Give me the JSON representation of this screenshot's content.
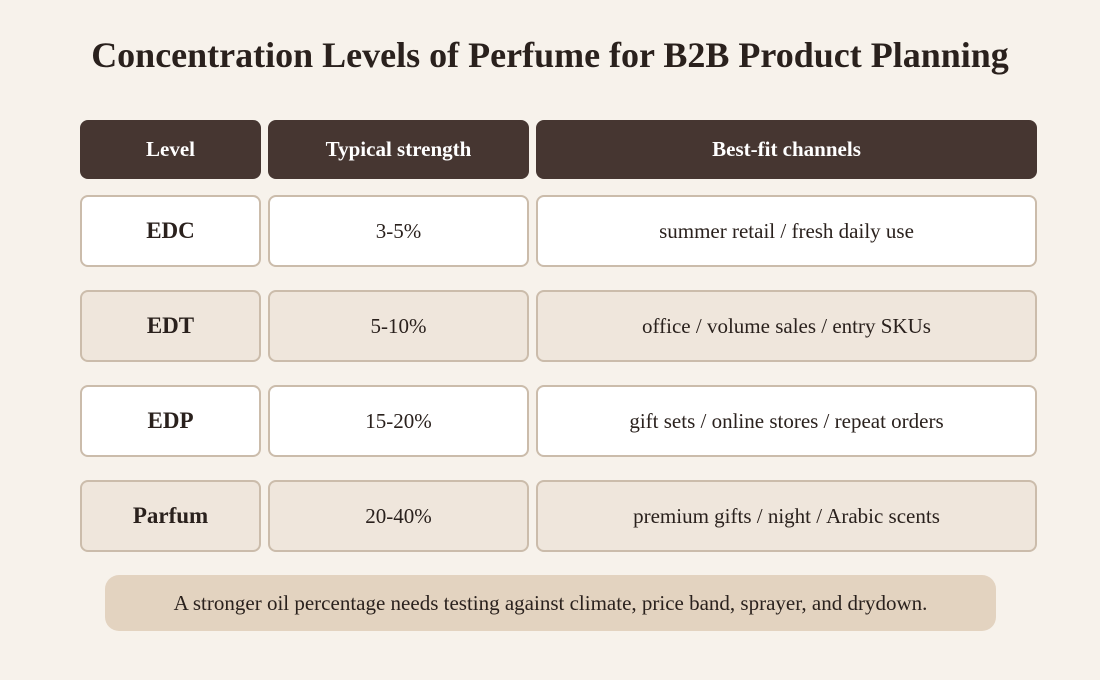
{
  "title": "Concentration Levels of Perfume for B2B Product Planning",
  "table": {
    "header": [
      "Level",
      "Typical strength",
      "Best-fit channels"
    ],
    "rows": [
      [
        "EDC",
        "3-5%",
        "summer retail / fresh daily use"
      ],
      [
        "EDT",
        "5-10%",
        "office / volume sales / entry SKUs"
      ],
      [
        "EDP",
        "15-20%",
        "gift sets / online stores / repeat orders"
      ],
      [
        "Parfum",
        "20-40%",
        "premium gifts / night / Arabic scents"
      ]
    ]
  },
  "note": "A stronger oil percentage needs testing against climate, price band, sprayer, and drydown."
}
